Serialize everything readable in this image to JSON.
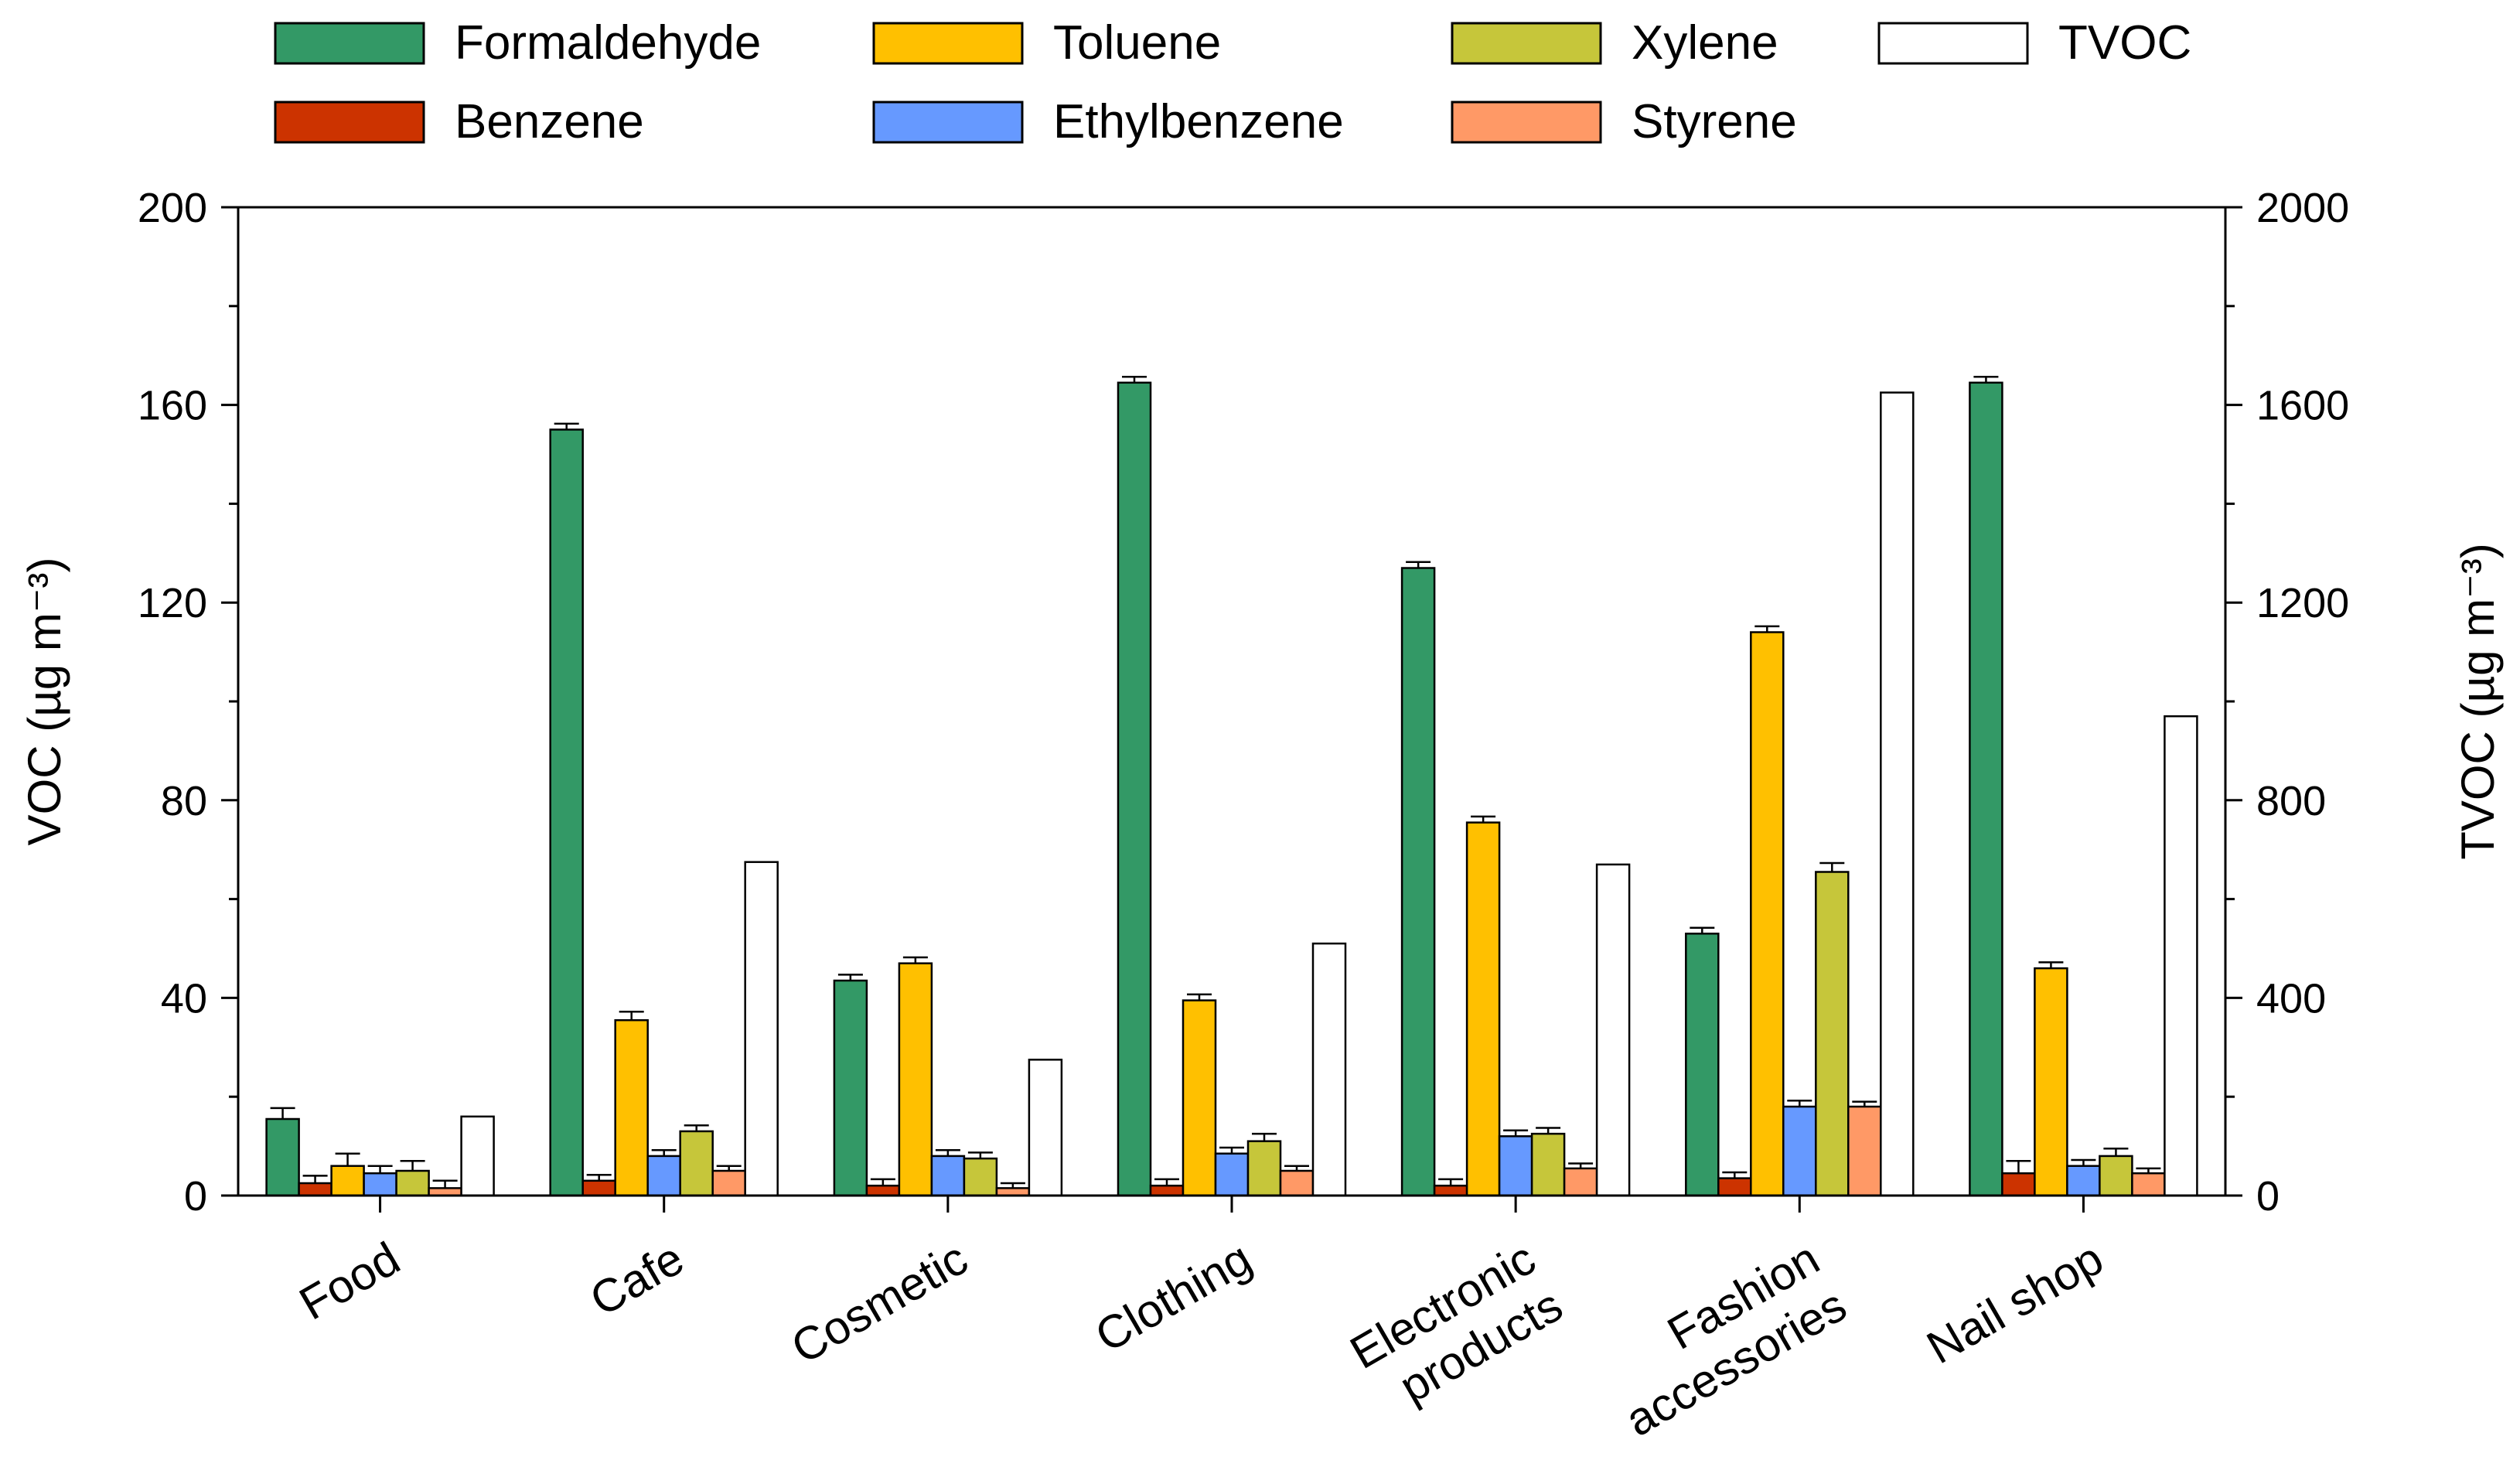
{
  "chart_data": {
    "type": "bar",
    "categories": [
      "Food",
      "Cafe",
      "Cosmetic",
      "Clothing",
      "Electronic\nproducts",
      "Fashion\naccessories",
      "Nail shop"
    ],
    "ylabel_left": "VOC (µg m⁻³)",
    "ylabel_right": "TVOC (µg m⁻³)",
    "ylim_left": [
      0,
      200
    ],
    "ylim_right": [
      0,
      2000
    ],
    "yticks_left": [
      "0",
      "40",
      "80",
      "120",
      "160",
      "200"
    ],
    "yticks_right": [
      "0",
      "400",
      "800",
      "1200",
      "1600",
      "2000"
    ],
    "legend_position": "top",
    "series": [
      {
        "name": "Formaldehyde",
        "axis": "left",
        "color": "#339966",
        "values": [
          15.5,
          155,
          43.5,
          164.5,
          127,
          53,
          164.5
        ],
        "errors": [
          2.2,
          1.2,
          1.2,
          1.2,
          1.2,
          1.2,
          1.2
        ]
      },
      {
        "name": "Benzene",
        "axis": "left",
        "color": "#cc3300",
        "values": [
          2.5,
          3,
          2,
          2,
          2,
          3.5,
          4.5
        ],
        "errors": [
          1.5,
          1.2,
          1.3,
          1.3,
          1.3,
          1.2,
          2.5
        ]
      },
      {
        "name": "Toluene",
        "axis": "left",
        "color": "#ffc000",
        "values": [
          6,
          35.5,
          47,
          39.5,
          75.5,
          114,
          46
        ],
        "errors": [
          2.5,
          1.7,
          1.2,
          1.2,
          1.2,
          1.2,
          1.2
        ]
      },
      {
        "name": "Ethylbenzene",
        "axis": "left",
        "color": "#6699ff",
        "values": [
          4.5,
          8,
          8,
          8.5,
          12,
          18,
          6
        ],
        "errors": [
          1.5,
          1.2,
          1.2,
          1.2,
          1.2,
          1.2,
          1.2
        ]
      },
      {
        "name": "Xylene",
        "axis": "left",
        "color": "#c6c63a",
        "values": [
          5,
          13,
          7.5,
          11,
          12.5,
          65.5,
          8
        ],
        "errors": [
          2.0,
          1.2,
          1.2,
          1.5,
          1.2,
          1.8,
          1.5
        ]
      },
      {
        "name": "Styrene",
        "axis": "left",
        "color": "#ff9966",
        "values": [
          1.5,
          5,
          1.5,
          5,
          5.5,
          18,
          4.5
        ],
        "errors": [
          1.5,
          1.0,
          1.0,
          1.0,
          1.0,
          1.0,
          1.0
        ]
      },
      {
        "name": "TVOC",
        "axis": "right",
        "color": "#ffffff",
        "values": [
          160,
          675,
          275,
          510,
          670,
          1625,
          970
        ],
        "errors": [
          0,
          0,
          0,
          0,
          0,
          0,
          0
        ]
      }
    ]
  }
}
